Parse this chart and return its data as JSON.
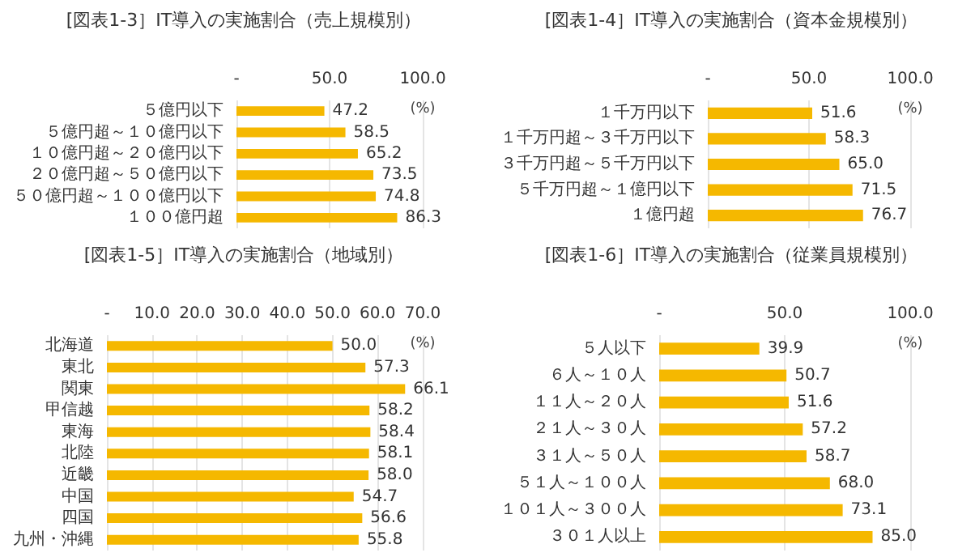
{
  "chart_data": [
    {
      "type": "bar",
      "orientation": "horizontal",
      "title": "[図表1-3］IT導入の実施割合（売上規模別）",
      "xlabel": "(%)",
      "categories": [
        "５億円以下",
        "５億円超～１０億円以下",
        "１０億円超～２０億円以下",
        "２０億円超～５０億円以下",
        "５０億円超～１００億円以下",
        "１００億円超"
      ],
      "values": [
        47.2,
        58.5,
        65.2,
        73.5,
        74.8,
        86.3
      ],
      "value_labels": [
        "47.2",
        "58.5",
        "65.2",
        "73.5",
        "74.8",
        "86.3"
      ],
      "color": "#f5b800",
      "xlim": [
        0,
        100
      ],
      "xticks": [
        {
          "value": 0,
          "label": "-"
        },
        {
          "value": 50,
          "label": "50.0"
        },
        {
          "value": 100,
          "label": "100.0"
        }
      ],
      "grid": "x"
    },
    {
      "type": "bar",
      "orientation": "horizontal",
      "title": "[図表1-4］IT導入の実施割合（資本金規模別）",
      "xlabel": "(%)",
      "categories": [
        "１千万円以下",
        "１千万円超～３千万円以下",
        "３千万円超～５千万円以下",
        "５千万円超～１億円以下",
        "１億円超"
      ],
      "values": [
        51.6,
        58.3,
        65.0,
        71.5,
        76.7
      ],
      "value_labels": [
        "51.6",
        "58.3",
        "65.0",
        "71.5",
        "76.7"
      ],
      "color": "#f5b800",
      "xlim": [
        0,
        100
      ],
      "xticks": [
        {
          "value": 0,
          "label": "-"
        },
        {
          "value": 50,
          "label": "50.0"
        },
        {
          "value": 100,
          "label": "100.0"
        }
      ],
      "grid": "x"
    },
    {
      "type": "bar",
      "orientation": "horizontal",
      "title": "[図表1-5］IT導入の実施割合（地域別）",
      "xlabel": "(%)",
      "categories": [
        "北海道",
        "東北",
        "関東",
        "甲信越",
        "東海",
        "北陸",
        "近畿",
        "中国",
        "四国",
        "九州・沖縄"
      ],
      "values": [
        50.0,
        57.3,
        66.1,
        58.2,
        58.4,
        58.1,
        58.0,
        54.7,
        56.6,
        55.8
      ],
      "value_labels": [
        "50.0",
        "57.3",
        "66.1",
        "58.2",
        "58.4",
        "58.1",
        "58.0",
        "54.7",
        "56.6",
        "55.8"
      ],
      "color": "#f5b800",
      "xlim": [
        0,
        70
      ],
      "xticks": [
        {
          "value": 0,
          "label": "-"
        },
        {
          "value": 10,
          "label": "10.0"
        },
        {
          "value": 20,
          "label": "20.0"
        },
        {
          "value": 30,
          "label": "30.0"
        },
        {
          "value": 40,
          "label": "40.0"
        },
        {
          "value": 50,
          "label": "50.0"
        },
        {
          "value": 60,
          "label": "60.0"
        },
        {
          "value": 70,
          "label": "70.0"
        }
      ],
      "grid": "x"
    },
    {
      "type": "bar",
      "orientation": "horizontal",
      "title": "[図表1-6］IT導入の実施割合（従業員規模別）",
      "xlabel": "(%)",
      "categories": [
        "５人以下",
        "６人～１０人",
        "１１人～２０人",
        "２１人～３０人",
        "３１人～５０人",
        "５１人～１００人",
        "１０１人～３００人",
        "３０１人以上"
      ],
      "values": [
        39.9,
        50.7,
        51.6,
        57.2,
        58.7,
        68.0,
        73.1,
        85.0
      ],
      "value_labels": [
        "39.9",
        "50.7",
        "51.6",
        "57.2",
        "58.7",
        "68.0",
        "73.1",
        "85.0"
      ],
      "color": "#f5b800",
      "xlim": [
        0,
        100
      ],
      "xticks": [
        {
          "value": 0,
          "label": "-"
        },
        {
          "value": 50,
          "label": "50.0"
        },
        {
          "value": 100,
          "label": "100.0"
        }
      ],
      "grid": "x"
    }
  ]
}
